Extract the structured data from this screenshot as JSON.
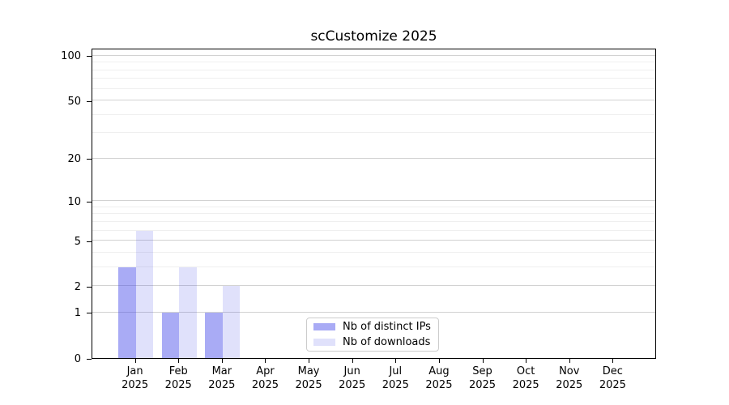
{
  "chart_data": {
    "type": "bar",
    "title": "scCustomize 2025",
    "categories": [
      "Jan",
      "Feb",
      "Mar",
      "Apr",
      "May",
      "Jun",
      "Jul",
      "Aug",
      "Sep",
      "Oct",
      "Nov",
      "Dec"
    ],
    "category_year": "2025",
    "series": [
      {
        "name": "Nb of distinct IPs",
        "color": "rgba(64,68,233,0.45)",
        "values": [
          3,
          1,
          1,
          0,
          0,
          0,
          0,
          0,
          0,
          0,
          0,
          0
        ]
      },
      {
        "name": "Nb of downloads",
        "color": "rgba(64,68,233,0.16)",
        "values": [
          6,
          3,
          2,
          0,
          0,
          0,
          0,
          0,
          0,
          0,
          0,
          0
        ]
      }
    ],
    "xlabel": "",
    "ylabel": "",
    "yscale": "log1p",
    "ylim": [
      0,
      113
    ],
    "yticks": [
      0,
      1,
      2,
      5,
      10,
      20,
      50,
      100
    ],
    "minor_gridlines": [
      3,
      4,
      6,
      7,
      8,
      9,
      30,
      40,
      60,
      70,
      80,
      90
    ],
    "grid": "horizontal",
    "legend_position": "inside-bottom-center",
    "colors": {
      "bar_distinct_ips": "#a9aaf3",
      "bar_downloads": "#dcddf8",
      "major_grid": "#d2d2d2",
      "minor_grid": "#efefef",
      "spine": "#000000",
      "legend_border": "#cccccc"
    }
  }
}
